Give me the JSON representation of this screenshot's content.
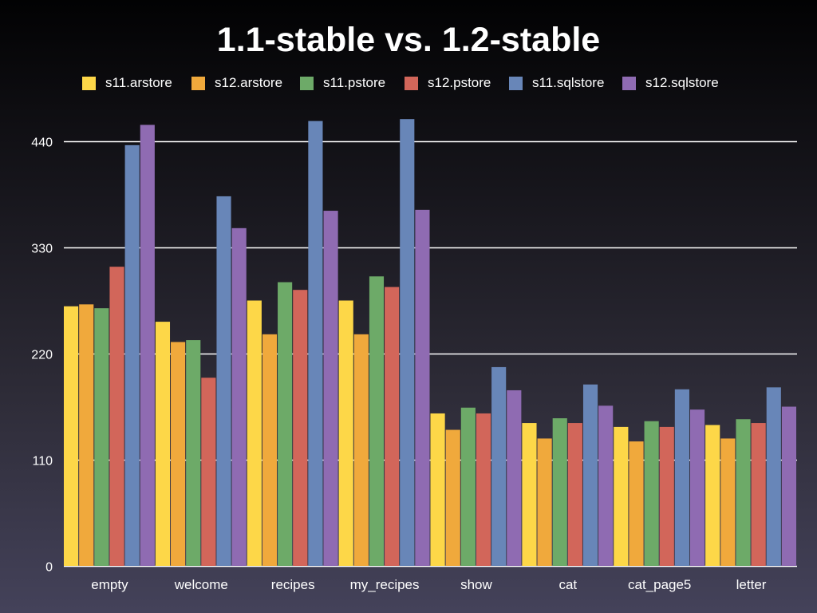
{
  "chart_data": {
    "type": "bar",
    "title": "1.1-stable vs. 1.2-stable",
    "xlabel": "",
    "ylabel": "",
    "ylim": [
      0,
      440
    ],
    "yticks": [
      0,
      110,
      220,
      330,
      440
    ],
    "grid": true,
    "legend_position": "top",
    "categories": [
      "empty",
      "welcome",
      "recipes",
      "my_recipes",
      "show",
      "cat",
      "cat_page5",
      "letter"
    ],
    "series": [
      {
        "name": "s11.arstore",
        "color": "#fdd748",
        "values": [
          269,
          253,
          275,
          275,
          158,
          148,
          144,
          146
        ]
      },
      {
        "name": "s12.arstore",
        "color": "#f0a93c",
        "values": [
          271,
          232,
          240,
          240,
          141,
          132,
          129,
          132
        ]
      },
      {
        "name": "s11.pstore",
        "color": "#6daa68",
        "values": [
          267,
          234,
          294,
          300,
          164,
          153,
          150,
          152
        ]
      },
      {
        "name": "s12.pstore",
        "color": "#d2665a",
        "values": [
          310,
          195,
          286,
          289,
          158,
          148,
          144,
          148
        ]
      },
      {
        "name": "s11.sqlstore",
        "color": "#6886b8",
        "values": [
          436,
          383,
          461,
          463,
          206,
          188,
          183,
          185
        ]
      },
      {
        "name": "s12.sqlstore",
        "color": "#8f6bb2",
        "values": [
          457,
          350,
          368,
          369,
          182,
          166,
          162,
          165
        ]
      }
    ]
  }
}
